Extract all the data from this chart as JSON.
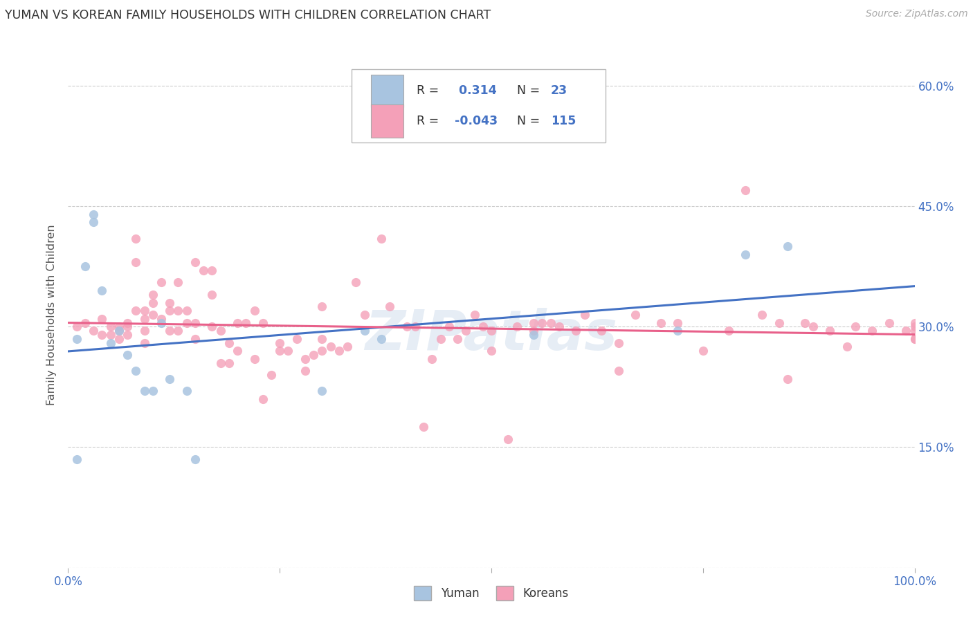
{
  "title": "YUMAN VS KOREAN FAMILY HOUSEHOLDS WITH CHILDREN CORRELATION CHART",
  "source": "Source: ZipAtlas.com",
  "ylabel": "Family Households with Children",
  "watermark": "ZIPatlas",
  "background_color": "#ffffff",
  "grid_color": "#cccccc",
  "title_color": "#333333",
  "axis_color": "#4472c4",
  "blue_scatter_color": "#a8c4e0",
  "pink_scatter_color": "#f4a0b8",
  "blue_line_color": "#4472c4",
  "pink_line_color": "#e8608a",
  "ytick_vals": [
    0.0,
    0.15,
    0.3,
    0.45,
    0.6
  ],
  "ytick_labels_right": [
    "",
    "15.0%",
    "30.0%",
    "45.0%",
    "60.0%"
  ],
  "xtick_vals": [
    0.0,
    0.25,
    0.5,
    0.75,
    1.0
  ],
  "xtick_labels": [
    "0.0%",
    "",
    "",
    "",
    "100.0%"
  ],
  "yuman_x": [
    0.01,
    0.01,
    0.02,
    0.03,
    0.03,
    0.04,
    0.05,
    0.06,
    0.07,
    0.08,
    0.09,
    0.1,
    0.11,
    0.12,
    0.14,
    0.15,
    0.3,
    0.35,
    0.37,
    0.55,
    0.72,
    0.8,
    0.85
  ],
  "yuman_y": [
    0.135,
    0.285,
    0.375,
    0.44,
    0.43,
    0.345,
    0.28,
    0.295,
    0.265,
    0.245,
    0.22,
    0.22,
    0.305,
    0.235,
    0.22,
    0.135,
    0.22,
    0.295,
    0.285,
    0.29,
    0.295,
    0.39,
    0.4
  ],
  "korean_x": [
    0.01,
    0.02,
    0.03,
    0.04,
    0.04,
    0.05,
    0.05,
    0.06,
    0.06,
    0.06,
    0.07,
    0.07,
    0.07,
    0.08,
    0.08,
    0.08,
    0.09,
    0.09,
    0.09,
    0.09,
    0.1,
    0.1,
    0.1,
    0.11,
    0.11,
    0.12,
    0.12,
    0.12,
    0.13,
    0.13,
    0.13,
    0.14,
    0.14,
    0.15,
    0.15,
    0.15,
    0.16,
    0.17,
    0.17,
    0.17,
    0.18,
    0.18,
    0.19,
    0.19,
    0.2,
    0.2,
    0.21,
    0.22,
    0.22,
    0.23,
    0.23,
    0.24,
    0.25,
    0.25,
    0.26,
    0.27,
    0.28,
    0.28,
    0.29,
    0.3,
    0.3,
    0.3,
    0.31,
    0.32,
    0.33,
    0.34,
    0.35,
    0.37,
    0.38,
    0.4,
    0.41,
    0.42,
    0.43,
    0.44,
    0.45,
    0.46,
    0.47,
    0.48,
    0.49,
    0.5,
    0.5,
    0.52,
    0.53,
    0.55,
    0.55,
    0.56,
    0.57,
    0.58,
    0.6,
    0.61,
    0.63,
    0.65,
    0.65,
    0.67,
    0.7,
    0.72,
    0.75,
    0.78,
    0.8,
    0.82,
    0.84,
    0.85,
    0.87,
    0.88,
    0.9,
    0.92,
    0.93,
    0.95,
    0.97,
    0.99,
    1.0,
    1.0,
    1.0,
    1.0,
    1.0
  ],
  "korean_y": [
    0.3,
    0.305,
    0.295,
    0.29,
    0.31,
    0.29,
    0.3,
    0.285,
    0.295,
    0.3,
    0.3,
    0.305,
    0.29,
    0.41,
    0.38,
    0.32,
    0.32,
    0.31,
    0.295,
    0.28,
    0.34,
    0.33,
    0.315,
    0.355,
    0.31,
    0.33,
    0.32,
    0.295,
    0.355,
    0.32,
    0.295,
    0.32,
    0.305,
    0.38,
    0.305,
    0.285,
    0.37,
    0.37,
    0.34,
    0.3,
    0.295,
    0.255,
    0.28,
    0.255,
    0.305,
    0.27,
    0.305,
    0.32,
    0.26,
    0.305,
    0.21,
    0.24,
    0.28,
    0.27,
    0.27,
    0.285,
    0.26,
    0.245,
    0.265,
    0.325,
    0.285,
    0.27,
    0.275,
    0.27,
    0.275,
    0.355,
    0.315,
    0.41,
    0.325,
    0.3,
    0.3,
    0.175,
    0.26,
    0.285,
    0.3,
    0.285,
    0.295,
    0.315,
    0.3,
    0.295,
    0.27,
    0.16,
    0.3,
    0.295,
    0.305,
    0.305,
    0.305,
    0.3,
    0.295,
    0.315,
    0.295,
    0.245,
    0.28,
    0.315,
    0.305,
    0.305,
    0.27,
    0.295,
    0.47,
    0.315,
    0.305,
    0.235,
    0.305,
    0.3,
    0.295,
    0.275,
    0.3,
    0.295,
    0.305,
    0.295,
    0.3,
    0.305,
    0.285,
    0.295,
    0.285
  ]
}
